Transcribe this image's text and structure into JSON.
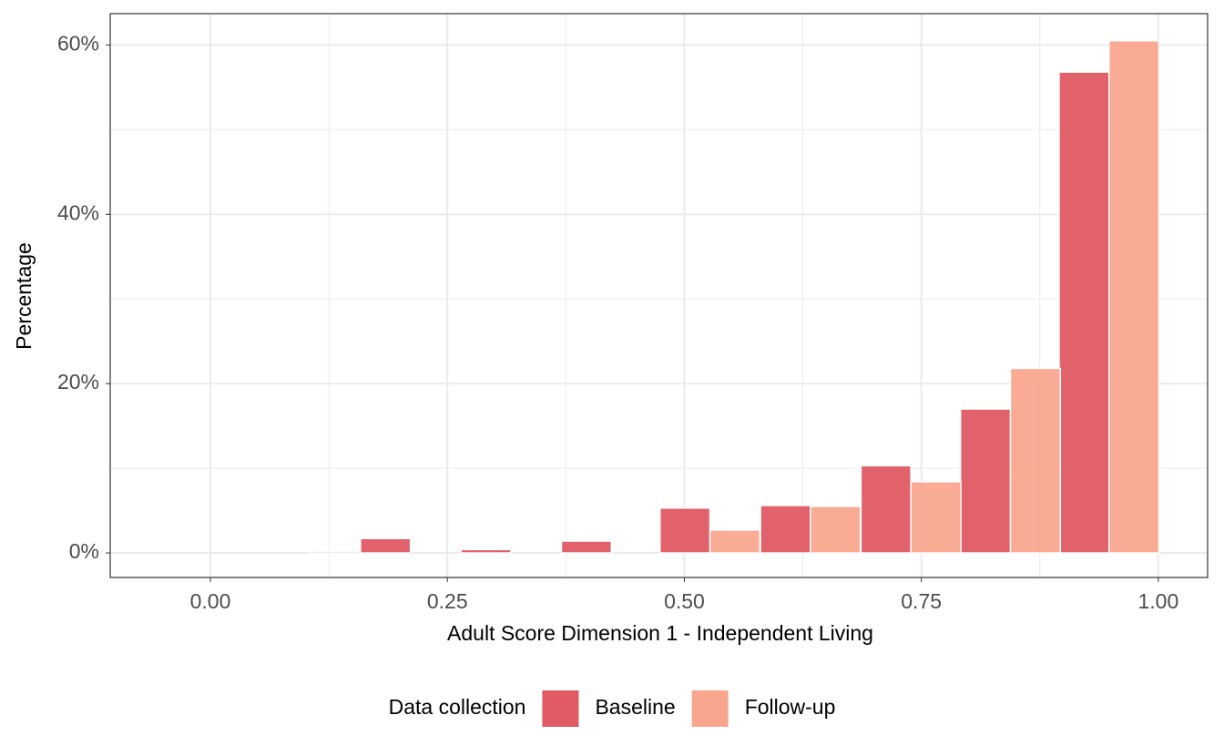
{
  "chart_data": {
    "type": "bar",
    "x_label": "Adult Score Dimension 1 - Independent Living",
    "y_label": "Percentage",
    "x": [
      0,
      0.105,
      0.211,
      0.317,
      0.423,
      0.527,
      0.633,
      0.739,
      0.844,
      0.948
    ],
    "series": [
      {
        "name": "Baseline",
        "color": "#e05a63",
        "values": [
          0,
          0,
          1.7,
          0.4,
          1.4,
          5.3,
          5.6,
          10.3,
          17.0,
          56.8
        ]
      },
      {
        "name": "Follow-up",
        "color": "#f9a68e",
        "values": [
          0,
          0.2,
          0,
          0,
          0,
          2.7,
          5.5,
          8.4,
          21.8,
          60.5
        ]
      }
    ],
    "xlim": [
      -0.1057,
      1.052
    ],
    "ylim": [
      -2.9,
      63.7
    ],
    "xticks": [
      {
        "value": 0,
        "label": "0.00"
      },
      {
        "value": 0.25,
        "label": "0.25"
      },
      {
        "value": 0.5,
        "label": "0.50"
      },
      {
        "value": 0.75,
        "label": "0.75"
      },
      {
        "value": 1,
        "label": "1.00"
      }
    ],
    "yticks": [
      {
        "value": 0,
        "label": "0%"
      },
      {
        "value": 20,
        "label": "20%"
      },
      {
        "value": 40,
        "label": "40%"
      },
      {
        "value": 60,
        "label": "60%"
      }
    ],
    "grid": true,
    "legend_title": "Data collection",
    "legend_position": "bottom"
  }
}
